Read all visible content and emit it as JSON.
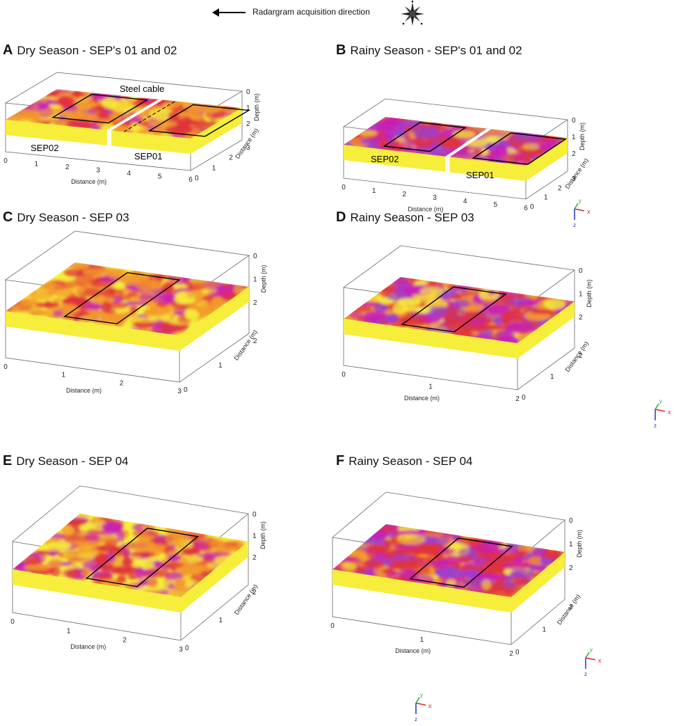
{
  "header": {
    "direction_label": "Radargram acquisition direction"
  },
  "panels": [
    {
      "letter": "A",
      "title": "Dry Season - SEP's 01 and 02",
      "labels": [
        "SEP02",
        "SEP01",
        "Steel cable"
      ],
      "x_ticks": [
        "0",
        "1",
        "2",
        "3",
        "4",
        "5",
        "6"
      ],
      "y_ticks": [
        "0",
        "1",
        "2",
        "3"
      ],
      "z_ticks": [
        "0",
        "1",
        "2"
      ],
      "x_axis": "Distance (m)",
      "y_axis": "Distance (m)",
      "z_axis": "Depth (m)",
      "season": "dry"
    },
    {
      "letter": "B",
      "title": "Rainy Season - SEP's 01 and 02",
      "labels": [
        "SEP02",
        "SEP01"
      ],
      "x_ticks": [
        "0",
        "1",
        "2",
        "3",
        "4",
        "5",
        "6"
      ],
      "y_ticks": [
        "0",
        "1",
        "2",
        "3"
      ],
      "z_ticks": [
        "0",
        "1",
        "2"
      ],
      "x_axis": "Distance (m)",
      "y_axis": "Distance (m)",
      "z_axis": "Depth (m)",
      "season": "rainy"
    },
    {
      "letter": "C",
      "title": "Dry Season - SEP 03",
      "x_ticks": [
        "0",
        "1",
        "2",
        "3"
      ],
      "y_ticks": [
        "0",
        "1",
        "2"
      ],
      "z_ticks": [
        "0",
        "1",
        "2"
      ],
      "x_axis": "Distance (m)",
      "y_axis": "Distance (m)",
      "z_axis": "Depth (m)",
      "season": "dry"
    },
    {
      "letter": "D",
      "title": "Rainy Season - SEP 03",
      "x_ticks": [
        "0",
        "1",
        "2"
      ],
      "y_ticks": [
        "0",
        "1",
        "2"
      ],
      "z_ticks": [
        "0",
        "1",
        "2"
      ],
      "x_axis": "Distance (m)",
      "y_axis": "Distance (m)",
      "z_axis": "Depth (m)",
      "season": "rainy"
    },
    {
      "letter": "E",
      "title": "Dry Season - SEP 04",
      "x_ticks": [
        "0",
        "1",
        "2",
        "3"
      ],
      "y_ticks": [
        "0",
        "1",
        "2"
      ],
      "z_ticks": [
        "0",
        "1",
        "2"
      ],
      "x_axis": "Distance (m)",
      "y_axis": "Distance (m)",
      "z_axis": "Depth (m)",
      "season": "dry"
    },
    {
      "letter": "F",
      "title": "Rainy Season -  SEP 04",
      "x_ticks": [
        "0",
        "1",
        "2"
      ],
      "y_ticks": [
        "0",
        "1",
        "2"
      ],
      "z_ticks": [
        "0",
        "1",
        "2"
      ],
      "x_axis": "Distance (m)",
      "y_axis": "Distance (m)",
      "z_axis": "Depth (m)",
      "season": "rainy"
    }
  ],
  "axis_triad": {
    "x": "x",
    "y": "y",
    "z": "z"
  },
  "colors": {
    "yellow": "#f6ee3a",
    "orange": "#f39a2a",
    "red": "#e0303a",
    "magenta": "#c81fb9",
    "purple": "#9b3fcf"
  }
}
